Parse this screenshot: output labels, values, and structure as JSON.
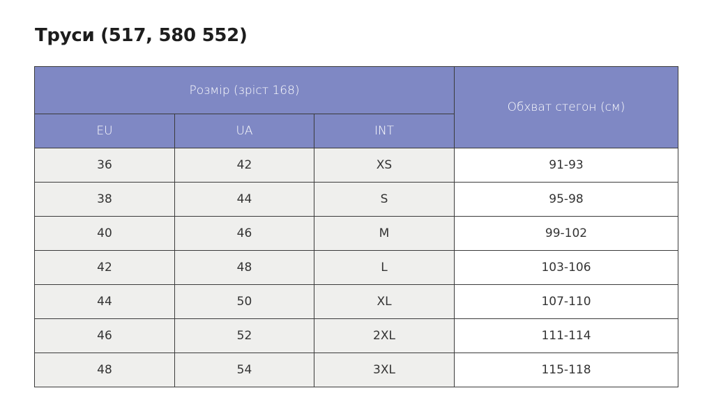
{
  "title": "Труси (517, 580 552)",
  "table": {
    "group_header": "Розмір (зріст 168)",
    "columns": [
      "EU",
      "UA",
      "INT"
    ],
    "last_header": "Обхват стегон (см)",
    "rows": [
      [
        "36",
        "42",
        "XS",
        "91-93"
      ],
      [
        "38",
        "44",
        "S",
        "95-98"
      ],
      [
        "40",
        "46",
        "M",
        "99-102"
      ],
      [
        "42",
        "48",
        "L",
        "103-106"
      ],
      [
        "44",
        "50",
        "XL",
        "107-110"
      ],
      [
        "46",
        "52",
        "2XL",
        "111-114"
      ],
      [
        "48",
        "54",
        "3XL",
        "115-118"
      ]
    ]
  }
}
